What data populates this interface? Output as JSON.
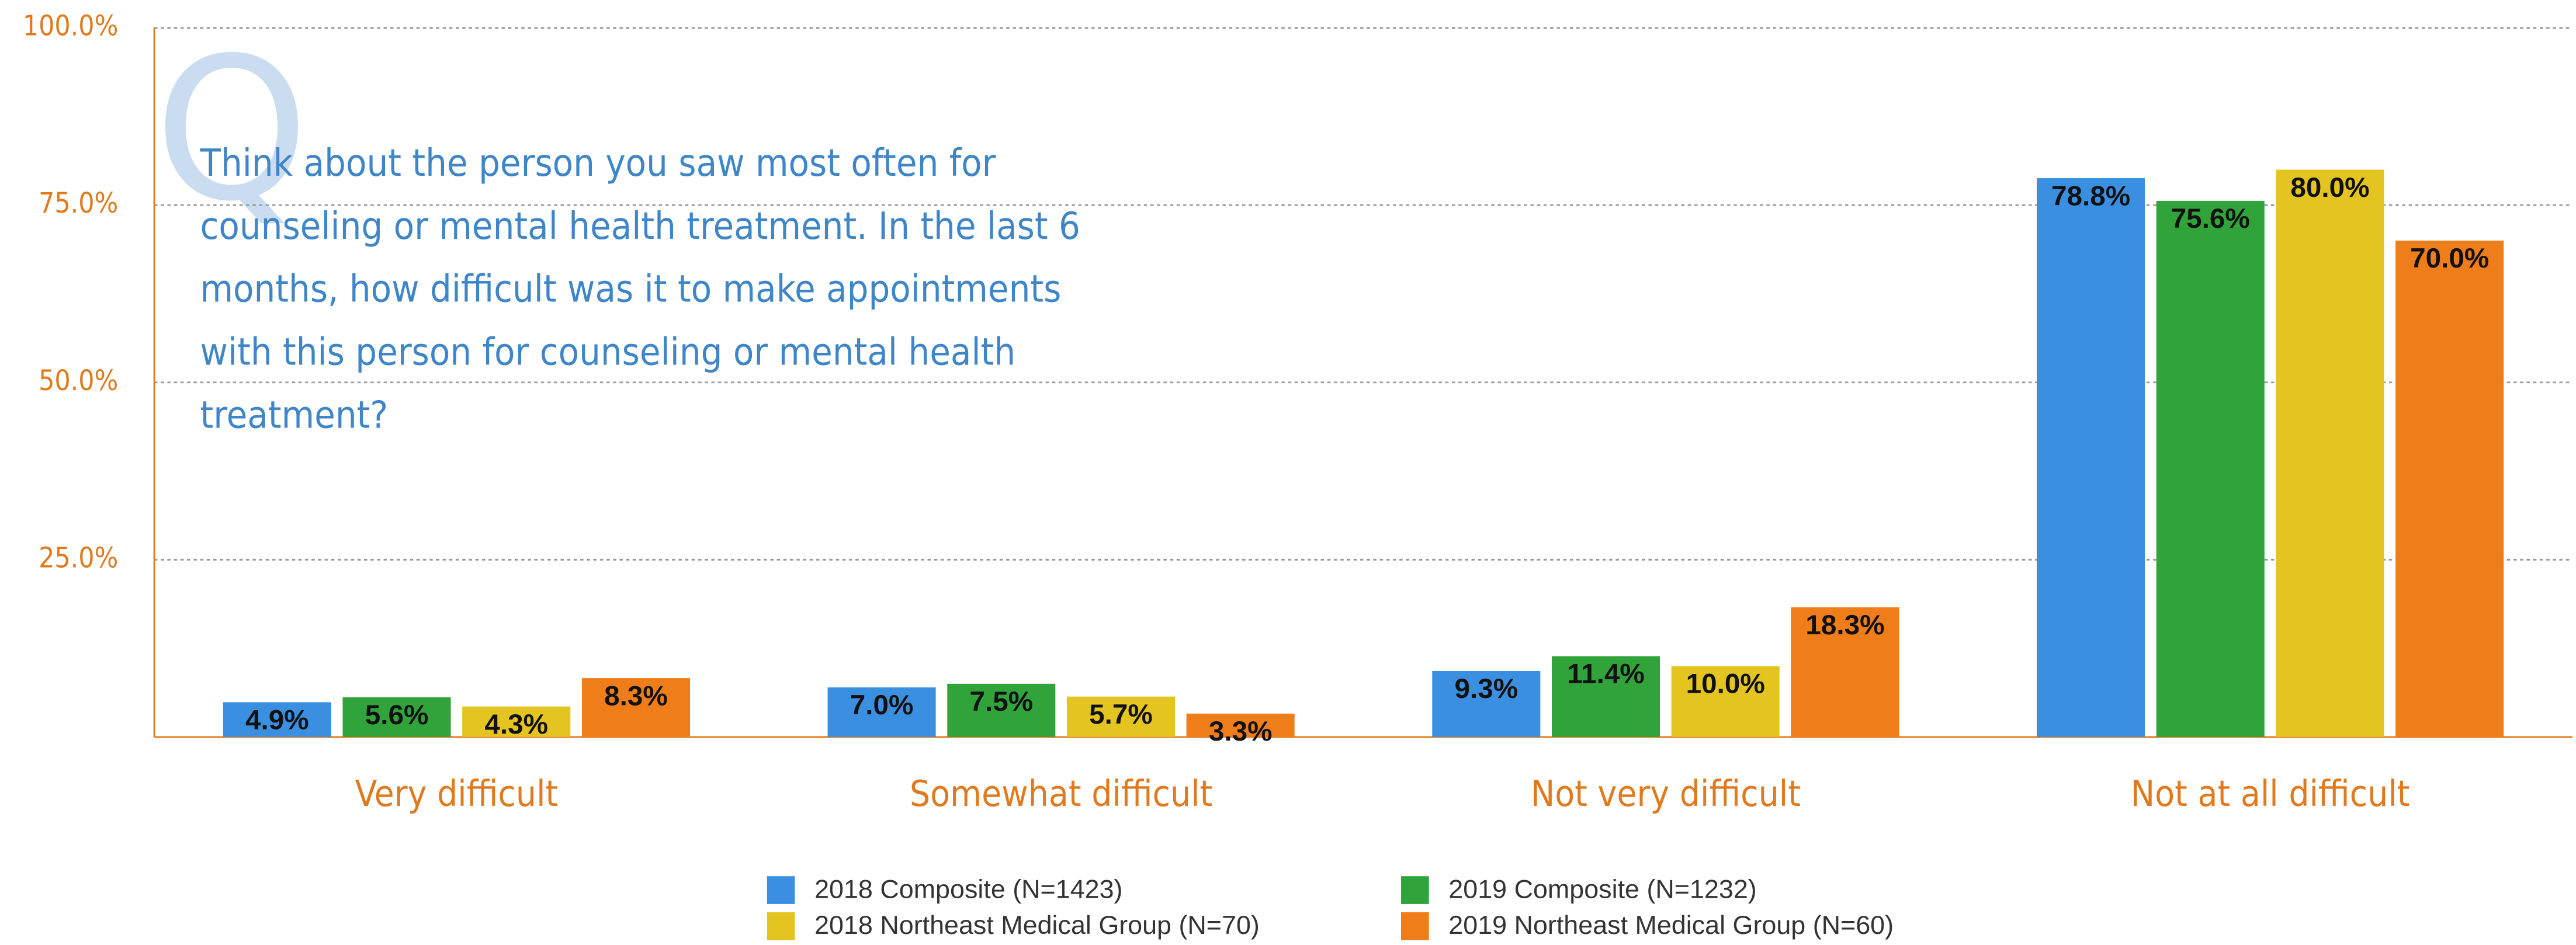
{
  "chart_data": {
    "type": "bar",
    "question_lines": [
      "Think about the person you saw most often for",
      "counseling or mental health treatment. In the last 6",
      "months, how difficult was it to make appointments",
      "with this person for counseling or mental health",
      "treatment?"
    ],
    "categories": [
      "Very difficult",
      "Somewhat difficult",
      "Not very difficult",
      "Not at all difficult"
    ],
    "series": [
      {
        "name": "2018 Composite (N=1423)",
        "color": "#3a8fe0",
        "values": [
          4.9,
          7.0,
          9.3,
          78.8
        ],
        "value_labels": [
          "4.9%",
          "7.0%",
          "9.3%",
          "78.8%"
        ]
      },
      {
        "name": "2019 Composite (N=1232)",
        "color": "#31a33b",
        "values": [
          5.6,
          7.5,
          11.4,
          75.6
        ],
        "value_labels": [
          "5.6%",
          "7.5%",
          "11.4%",
          "75.6%"
        ]
      },
      {
        "name": "2018 Northeast Medical Group (N=70)",
        "color": "#e3c420",
        "values": [
          4.3,
          5.7,
          10.0,
          80.0
        ],
        "value_labels": [
          "4.3%",
          "5.7%",
          "10.0%",
          "80.0%"
        ]
      },
      {
        "name": "2019 Northeast Medical Group (N=60)",
        "color": "#ee7d1a",
        "values": [
          8.3,
          3.3,
          18.3,
          70.0
        ],
        "value_labels": [
          "8.3%",
          "3.3%",
          "18.3%",
          "70.0%"
        ]
      }
    ],
    "ylim": [
      0,
      100
    ],
    "yticks": [
      {
        "value": 25,
        "label": "25.0%"
      },
      {
        "value": 50,
        "label": "50.0%"
      },
      {
        "value": 75,
        "label": "75.0%"
      },
      {
        "value": 100,
        "label": "100.0%"
      }
    ],
    "grid": true
  }
}
